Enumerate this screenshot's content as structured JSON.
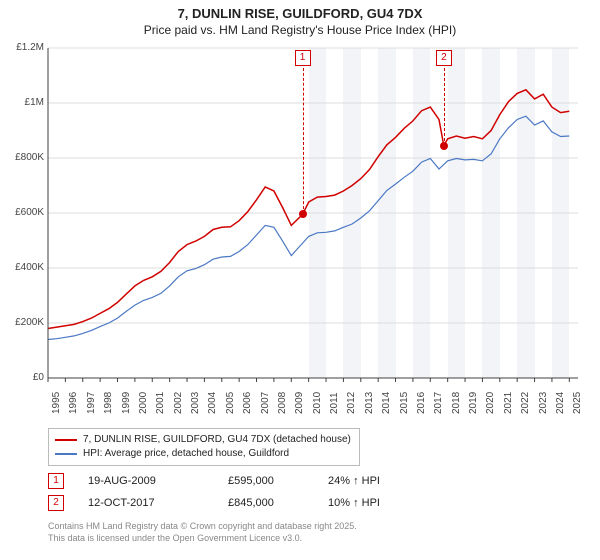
{
  "title": "7, DUNLIN RISE, GUILDFORD, GU4 7DX",
  "subtitle": "Price paid vs. HM Land Registry's House Price Index (HPI)",
  "chart": {
    "type": "line",
    "background_color": "#ffffff",
    "grid_color": "#dcdcdc",
    "shade_color": "#f2f4f8",
    "axis_color": "#404040",
    "x_years": [
      1995,
      1996,
      1997,
      1998,
      1999,
      2000,
      2001,
      2002,
      2003,
      2004,
      2005,
      2006,
      2007,
      2008,
      2009,
      2010,
      2011,
      2012,
      2013,
      2014,
      2015,
      2016,
      2017,
      2018,
      2019,
      2020,
      2021,
      2022,
      2023,
      2024,
      2025
    ],
    "x_min": 1995,
    "x_max": 2025.5,
    "ylim": [
      0,
      1200000
    ],
    "ytick_step": 200000,
    "y_labels": [
      "£0",
      "£200K",
      "£400K",
      "£600K",
      "£800K",
      "£1M",
      "£1.2M"
    ],
    "series": [
      {
        "name": "7, DUNLIN RISE, GUILDFORD, GU4 7DX (detached house)",
        "color": "#d10000",
        "line_width": 1.5,
        "data": [
          [
            1995.0,
            180000
          ],
          [
            1995.5,
            185000
          ],
          [
            1996.0,
            190000
          ],
          [
            1996.5,
            195000
          ],
          [
            1997.0,
            205000
          ],
          [
            1997.5,
            218000
          ],
          [
            1998.0,
            235000
          ],
          [
            1998.5,
            252000
          ],
          [
            1999.0,
            275000
          ],
          [
            1999.5,
            305000
          ],
          [
            2000.0,
            335000
          ],
          [
            2000.5,
            355000
          ],
          [
            2001.0,
            368000
          ],
          [
            2001.5,
            388000
          ],
          [
            2002.0,
            420000
          ],
          [
            2002.5,
            460000
          ],
          [
            2003.0,
            485000
          ],
          [
            2003.5,
            498000
          ],
          [
            2004.0,
            515000
          ],
          [
            2004.5,
            540000
          ],
          [
            2005.0,
            548000
          ],
          [
            2005.5,
            550000
          ],
          [
            2006.0,
            572000
          ],
          [
            2006.5,
            605000
          ],
          [
            2007.0,
            648000
          ],
          [
            2007.5,
            695000
          ],
          [
            2008.0,
            680000
          ],
          [
            2008.5,
            620000
          ],
          [
            2009.0,
            555000
          ],
          [
            2009.65,
            595000
          ],
          [
            2010.0,
            640000
          ],
          [
            2010.5,
            658000
          ],
          [
            2011.0,
            660000
          ],
          [
            2011.5,
            665000
          ],
          [
            2012.0,
            680000
          ],
          [
            2012.5,
            700000
          ],
          [
            2013.0,
            725000
          ],
          [
            2013.5,
            758000
          ],
          [
            2014.0,
            805000
          ],
          [
            2014.5,
            848000
          ],
          [
            2015.0,
            875000
          ],
          [
            2015.5,
            908000
          ],
          [
            2016.0,
            935000
          ],
          [
            2016.5,
            972000
          ],
          [
            2017.0,
            985000
          ],
          [
            2017.5,
            940000
          ],
          [
            2017.78,
            845000
          ],
          [
            2018.0,
            870000
          ],
          [
            2018.5,
            880000
          ],
          [
            2019.0,
            872000
          ],
          [
            2019.5,
            878000
          ],
          [
            2020.0,
            870000
          ],
          [
            2020.5,
            900000
          ],
          [
            2021.0,
            958000
          ],
          [
            2021.5,
            1005000
          ],
          [
            2022.0,
            1035000
          ],
          [
            2022.5,
            1048000
          ],
          [
            2023.0,
            1015000
          ],
          [
            2023.5,
            1032000
          ],
          [
            2024.0,
            985000
          ],
          [
            2024.5,
            965000
          ],
          [
            2025.0,
            970000
          ]
        ]
      },
      {
        "name": "HPI: Average price, detached house, Guildford",
        "color": "#4a78c4",
        "line_width": 1.2,
        "data": [
          [
            1995.0,
            140000
          ],
          [
            1995.5,
            143000
          ],
          [
            1996.0,
            148000
          ],
          [
            1996.5,
            153000
          ],
          [
            1997.0,
            162000
          ],
          [
            1997.5,
            173000
          ],
          [
            1998.0,
            187000
          ],
          [
            1998.5,
            200000
          ],
          [
            1999.0,
            218000
          ],
          [
            1999.5,
            242000
          ],
          [
            2000.0,
            265000
          ],
          [
            2000.5,
            282000
          ],
          [
            2001.0,
            293000
          ],
          [
            2001.5,
            308000
          ],
          [
            2002.0,
            335000
          ],
          [
            2002.5,
            368000
          ],
          [
            2003.0,
            390000
          ],
          [
            2003.5,
            398000
          ],
          [
            2004.0,
            412000
          ],
          [
            2004.5,
            432000
          ],
          [
            2005.0,
            440000
          ],
          [
            2005.5,
            442000
          ],
          [
            2006.0,
            460000
          ],
          [
            2006.5,
            485000
          ],
          [
            2007.0,
            520000
          ],
          [
            2007.5,
            555000
          ],
          [
            2008.0,
            548000
          ],
          [
            2008.5,
            498000
          ],
          [
            2009.0,
            445000
          ],
          [
            2009.5,
            480000
          ],
          [
            2010.0,
            515000
          ],
          [
            2010.5,
            528000
          ],
          [
            2011.0,
            530000
          ],
          [
            2011.5,
            535000
          ],
          [
            2012.0,
            548000
          ],
          [
            2012.5,
            560000
          ],
          [
            2013.0,
            582000
          ],
          [
            2013.5,
            608000
          ],
          [
            2014.0,
            645000
          ],
          [
            2014.5,
            682000
          ],
          [
            2015.0,
            705000
          ],
          [
            2015.5,
            730000
          ],
          [
            2016.0,
            752000
          ],
          [
            2016.5,
            785000
          ],
          [
            2017.0,
            798000
          ],
          [
            2017.5,
            760000
          ],
          [
            2018.0,
            790000
          ],
          [
            2018.5,
            798000
          ],
          [
            2019.0,
            793000
          ],
          [
            2019.5,
            795000
          ],
          [
            2020.0,
            790000
          ],
          [
            2020.5,
            815000
          ],
          [
            2021.0,
            870000
          ],
          [
            2021.5,
            910000
          ],
          [
            2022.0,
            940000
          ],
          [
            2022.5,
            952000
          ],
          [
            2023.0,
            920000
          ],
          [
            2023.5,
            935000
          ],
          [
            2024.0,
            895000
          ],
          [
            2024.5,
            878000
          ],
          [
            2025.0,
            880000
          ]
        ]
      }
    ],
    "sales": [
      {
        "num": "1",
        "date_x": 2009.65,
        "price_y": 595000,
        "date_label": "19-AUG-2009",
        "price_label": "£595,000",
        "hpi_label": "24% ↑ HPI",
        "dot_color": "#d10000"
      },
      {
        "num": "2",
        "date_x": 2017.78,
        "price_y": 845000,
        "date_label": "12-OCT-2017",
        "price_label": "£845,000",
        "hpi_label": "10% ↑ HPI",
        "dot_color": "#d10000"
      }
    ]
  },
  "legend": {
    "items": [
      {
        "label": "7, DUNLIN RISE, GUILDFORD, GU4 7DX (detached house)",
        "color": "#d10000"
      },
      {
        "label": "HPI: Average price, detached house, Guildford",
        "color": "#4a78c4"
      }
    ]
  },
  "footnote_line1": "Contains HM Land Registry data © Crown copyright and database right 2025.",
  "footnote_line2": "This data is licensed under the Open Government Licence v3.0."
}
